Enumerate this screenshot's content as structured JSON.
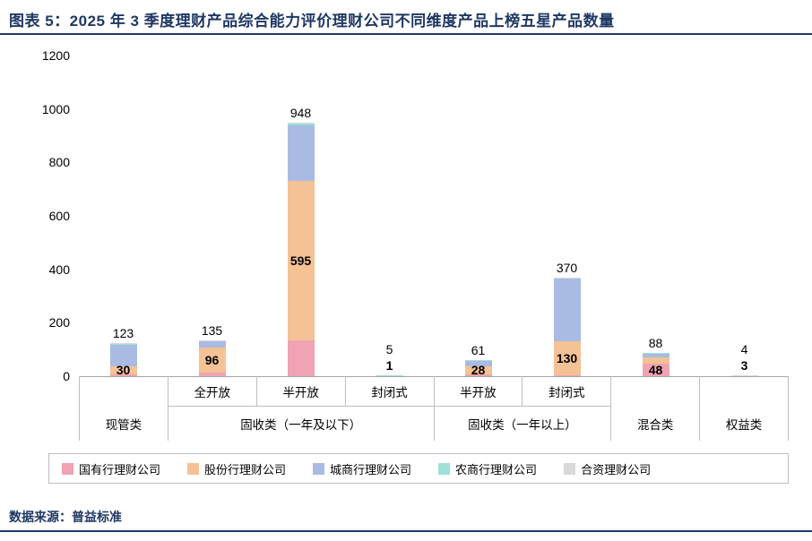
{
  "title": "图表 5：2025 年 3 季度理财产品综合能力评价理财公司不同维度产品上榜五星产品数量",
  "source": "数据来源：普益标准",
  "colors": {
    "accent_navy": "#1F3864",
    "axis_line": "#A6A6A6",
    "table_border": "#BFBFBF"
  },
  "chart_data": {
    "type": "bar",
    "stacked": true,
    "title": "",
    "xlabel": "",
    "ylabel": "",
    "ylim": [
      0,
      1200
    ],
    "yticks": [
      0,
      200,
      400,
      600,
      800,
      1000,
      1200
    ],
    "grid": false,
    "legend_position": "bottom",
    "categories": [
      "现管类",
      "全开放",
      "半开放",
      "封闭式",
      "半开放",
      "封闭式",
      "混合类",
      "权益类"
    ],
    "axis_groups": [
      {
        "label": "现管类",
        "span": 1,
        "subs": []
      },
      {
        "label": "固收类（一年及以下）",
        "span": 3,
        "subs": [
          "全开放",
          "半开放",
          "封闭式"
        ]
      },
      {
        "label": "固收类（一年以上）",
        "span": 2,
        "subs": [
          "半开放",
          "封闭式"
        ]
      },
      {
        "label": "混合类",
        "span": 1,
        "subs": []
      },
      {
        "label": "权益类",
        "span": 1,
        "subs": []
      }
    ],
    "series": [
      {
        "name": "国有行理财公司",
        "color": "#F0A3B2",
        "values": [
          8,
          12,
          135,
          1,
          8,
          2,
          48,
          0
        ]
      },
      {
        "name": "股份行理财公司",
        "color": "#F5C296",
        "values": [
          30,
          96,
          595,
          1,
          28,
          130,
          22,
          3
        ]
      },
      {
        "name": "城商行理财公司",
        "color": "#A9BBE3",
        "values": [
          83,
          22,
          210,
          2,
          24,
          235,
          16,
          0
        ]
      },
      {
        "name": "农商行理财公司",
        "color": "#9FE1D6",
        "values": [
          1,
          3,
          5,
          1,
          1,
          2,
          2,
          0
        ]
      },
      {
        "name": "合资理财公司",
        "color": "#D9D9D9",
        "values": [
          1,
          2,
          3,
          0,
          0,
          1,
          0,
          1
        ]
      }
    ],
    "total_labels": [
      123,
      135,
      948,
      5,
      61,
      370,
      88,
      4
    ],
    "inner_labels": [
      {
        "bar": 0,
        "series": 1,
        "value": 30
      },
      {
        "bar": 1,
        "series": 1,
        "value": 96
      },
      {
        "bar": 2,
        "series": 1,
        "value": 595
      },
      {
        "bar": 3,
        "series": 3,
        "value": 1
      },
      {
        "bar": 4,
        "series": 1,
        "value": 28
      },
      {
        "bar": 5,
        "series": 1,
        "value": 130
      },
      {
        "bar": 6,
        "series": 0,
        "value": 48
      },
      {
        "bar": 7,
        "series": 1,
        "value": 3
      }
    ]
  }
}
